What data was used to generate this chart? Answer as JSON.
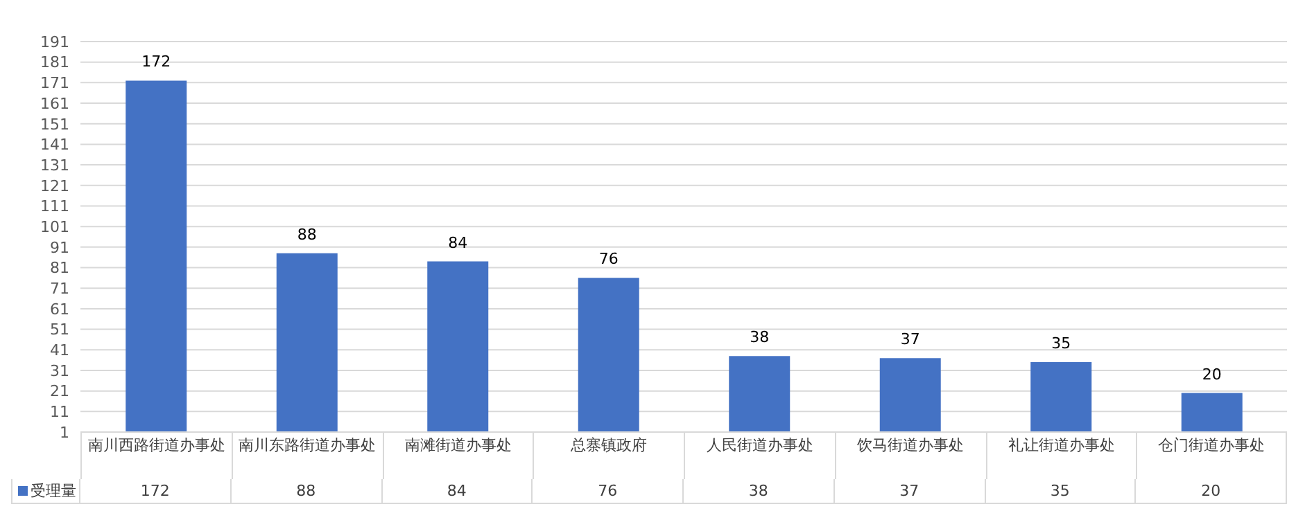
{
  "chart_data": {
    "type": "bar",
    "categories": [
      "南川西路街道办事处",
      "南川东路街道办事处",
      "南滩街道办事处",
      "总寨镇政府",
      "人民街道办事处",
      "饮马街道办事处",
      "礼让街道办事处",
      "仓门街道办事处"
    ],
    "series": [
      {
        "name": "受理量",
        "color": "#4472c4",
        "values": [
          172,
          88,
          84,
          76,
          38,
          37,
          35,
          20
        ],
        "value_labels": [
          "172",
          "88",
          "84",
          "76",
          "38",
          "37",
          "35",
          "20"
        ]
      }
    ],
    "ylim": [
      1,
      191
    ],
    "yticks": [
      1,
      11,
      21,
      31,
      41,
      51,
      61,
      71,
      81,
      91,
      101,
      111,
      121,
      131,
      141,
      151,
      161,
      171,
      181,
      191
    ],
    "grid": "y",
    "data_labels": true,
    "legend": "bottom"
  }
}
